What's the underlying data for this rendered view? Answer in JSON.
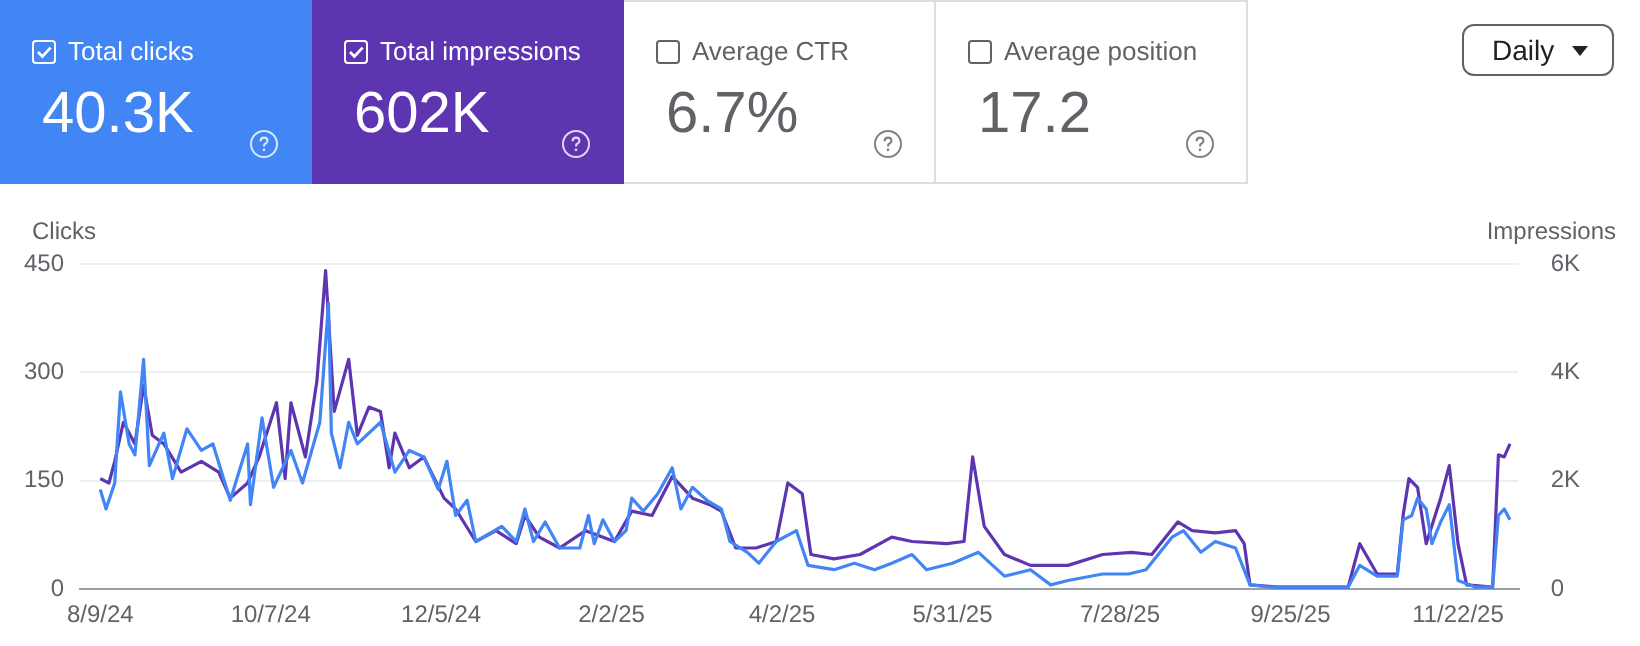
{
  "chart_data": {
    "type": "line",
    "ylabel": "Clicks",
    "y2label": "Impressions",
    "annotations": [
      "40.3K",
      "602K",
      "Average CTR",
      "6.7%",
      "Average position",
      "17.2",
      "Daily"
    ],
    "xlim": [
      "2024-08-02",
      "2025-12-13"
    ],
    "xticks": [
      {
        "value": "2024-08-09",
        "label": "8/9/24"
      },
      {
        "value": "2024-10-07",
        "label": "10/7/24"
      },
      {
        "value": "2024-12-05",
        "label": "12/5/24"
      },
      {
        "value": "2025-02-02",
        "label": "2/2/25"
      },
      {
        "value": "2025-04-02",
        "label": "4/2/25"
      },
      {
        "value": "2025-05-31",
        "label": "5/31/25"
      },
      {
        "value": "2025-07-28",
        "label": "7/28/25"
      },
      {
        "value": "2025-09-25",
        "label": "9/25/25"
      },
      {
        "value": "2025-11-22",
        "label": "11/22/25"
      }
    ],
    "ylim": [
      0,
      450
    ],
    "yticks": [
      0,
      150,
      300,
      450
    ],
    "y2lim": [
      0,
      6000
    ],
    "y2ticks": [
      {
        "value": 0,
        "label": "0"
      },
      {
        "value": 2000,
        "label": "2K"
      },
      {
        "value": 4000,
        "label": "4K"
      },
      {
        "value": 6000,
        "label": "6K"
      }
    ],
    "grid": "y",
    "legend": "top",
    "marker": "none",
    "line_style": "solid",
    "series": [
      {
        "name": "Total clicks",
        "color": "#4285f4",
        "x": [
          "2024-08-09",
          "2024-08-11",
          "2024-08-14",
          "2024-08-16",
          "2024-08-19",
          "2024-08-21",
          "2024-08-24",
          "2024-08-26",
          "2024-08-31",
          "2024-09-03",
          "2024-09-08",
          "2024-09-13",
          "2024-09-17",
          "2024-09-23",
          "2024-09-29",
          "2024-09-30",
          "2024-10-04",
          "2024-10-08",
          "2024-10-14",
          "2024-10-18",
          "2024-10-24",
          "2024-10-27",
          "2024-10-28",
          "2024-10-31",
          "2024-11-03",
          "2024-11-06",
          "2024-11-14",
          "2024-11-19",
          "2024-11-24",
          "2024-11-29",
          "2024-12-04",
          "2024-12-07",
          "2024-12-10",
          "2024-12-14",
          "2024-12-17",
          "2024-12-26",
          "2024-12-31",
          "2025-01-03",
          "2025-01-06",
          "2025-01-10",
          "2025-01-15",
          "2025-01-22",
          "2025-01-25",
          "2025-01-27",
          "2025-01-30",
          "2025-02-03",
          "2025-02-07",
          "2025-02-09",
          "2025-02-13",
          "2025-02-18",
          "2025-02-23",
          "2025-02-26",
          "2025-03-02",
          "2025-03-07",
          "2025-03-12",
          "2025-03-15",
          "2025-03-21",
          "2025-03-25",
          "2025-03-31",
          "2025-04-07",
          "2025-04-11",
          "2025-04-20",
          "2025-04-27",
          "2025-05-04",
          "2025-05-10",
          "2025-05-17",
          "2025-05-22",
          "2025-05-31",
          "2025-06-09",
          "2025-06-18",
          "2025-06-27",
          "2025-07-04",
          "2025-07-10",
          "2025-07-22",
          "2025-07-31",
          "2025-08-06",
          "2025-08-15",
          "2025-08-19",
          "2025-08-25",
          "2025-08-30",
          "2025-09-06",
          "2025-09-11",
          "2025-09-18",
          "2025-10-15",
          "2025-10-19",
          "2025-10-25",
          "2025-11-01",
          "2025-11-03",
          "2025-11-06",
          "2025-11-08",
          "2025-11-11",
          "2025-11-13",
          "2025-11-16",
          "2025-11-19",
          "2025-11-22",
          "2025-11-28",
          "2025-12-04",
          "2025-12-06",
          "2025-12-08",
          "2025-12-10"
        ],
        "values": [
          138,
          111,
          147,
          273,
          201,
          186,
          318,
          171,
          216,
          153,
          222,
          192,
          201,
          123,
          201,
          117,
          237,
          141,
          192,
          147,
          231,
          396,
          216,
          168,
          231,
          201,
          231,
          162,
          192,
          183,
          138,
          177,
          102,
          123,
          66,
          87,
          66,
          111,
          66,
          93,
          57,
          57,
          102,
          63,
          96,
          66,
          81,
          126,
          108,
          132,
          168,
          111,
          141,
          123,
          111,
          66,
          51,
          36,
          66,
          81,
          33,
          27,
          36,
          27,
          36,
          48,
          27,
          36,
          51,
          18,
          27,
          6,
          12,
          21,
          21,
          27,
          72,
          81,
          51,
          66,
          57,
          6,
          3,
          3,
          33,
          18,
          18,
          96,
          102,
          126,
          111,
          63,
          93,
          117,
          12,
          3,
          3,
          102,
          111,
          96
        ]
      },
      {
        "name": "Total impressions",
        "color": "#5e35b1",
        "axis": "y2",
        "x": [
          "2024-08-09",
          "2024-08-12",
          "2024-08-14",
          "2024-08-17",
          "2024-08-21",
          "2024-08-24",
          "2024-08-27",
          "2024-08-31",
          "2024-09-06",
          "2024-09-13",
          "2024-09-19",
          "2024-09-23",
          "2024-09-29",
          "2024-10-03",
          "2024-10-09",
          "2024-10-12",
          "2024-10-14",
          "2024-10-19",
          "2024-10-23",
          "2024-10-26",
          "2024-10-29",
          "2024-11-03",
          "2024-11-06",
          "2024-11-10",
          "2024-11-14",
          "2024-11-17",
          "2024-11-19",
          "2024-11-24",
          "2024-11-29",
          "2024-12-06",
          "2024-12-10",
          "2024-12-17",
          "2024-12-24",
          "2024-12-31",
          "2025-01-03",
          "2025-01-08",
          "2025-01-15",
          "2025-01-24",
          "2025-02-03",
          "2025-02-09",
          "2025-02-16",
          "2025-02-23",
          "2025-03-02",
          "2025-03-08",
          "2025-03-12",
          "2025-03-17",
          "2025-03-24",
          "2025-03-31",
          "2025-04-04",
          "2025-04-09",
          "2025-04-12",
          "2025-04-20",
          "2025-04-29",
          "2025-05-10",
          "2025-05-17",
          "2025-05-29",
          "2025-06-04",
          "2025-06-07",
          "2025-06-11",
          "2025-06-18",
          "2025-06-27",
          "2025-07-04",
          "2025-07-10",
          "2025-07-22",
          "2025-08-01",
          "2025-08-08",
          "2025-08-17",
          "2025-08-22",
          "2025-08-30",
          "2025-09-06",
          "2025-09-09",
          "2025-09-11",
          "2025-09-21",
          "2025-10-15",
          "2025-10-19",
          "2025-10-25",
          "2025-11-01",
          "2025-11-03",
          "2025-11-05",
          "2025-11-08",
          "2025-11-11",
          "2025-11-16",
          "2025-11-19",
          "2025-11-22",
          "2025-11-25",
          "2025-12-04",
          "2025-12-06",
          "2025-12-08",
          "2025-12-10"
        ],
        "values": [
          2040,
          1960,
          2360,
          3080,
          2680,
          3760,
          2840,
          2680,
          2160,
          2360,
          2160,
          1680,
          1960,
          2440,
          3440,
          2040,
          3440,
          2440,
          3840,
          5880,
          3280,
          4240,
          2840,
          3360,
          3280,
          2240,
          2880,
          2240,
          2440,
          1680,
          1480,
          880,
          1080,
          840,
          1360,
          960,
          760,
          1080,
          880,
          1440,
          1360,
          2080,
          1680,
          1560,
          1440,
          760,
          760,
          880,
          1960,
          1760,
          640,
          560,
          640,
          960,
          880,
          840,
          880,
          2440,
          1160,
          640,
          440,
          440,
          440,
          640,
          680,
          640,
          1240,
          1080,
          1040,
          1080,
          840,
          80,
          40,
          40,
          840,
          280,
          280,
          1360,
          2040,
          1880,
          840,
          1680,
          2280,
          840,
          80,
          40,
          2480,
          2440,
          2680
        ]
      }
    ]
  }
}
